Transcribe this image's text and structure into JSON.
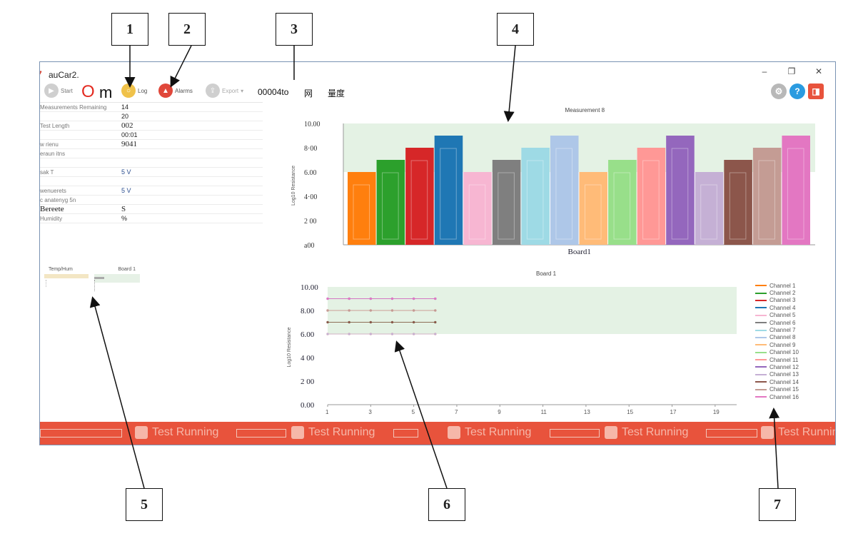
{
  "callouts": [
    "1",
    "2",
    "3",
    "4",
    "5",
    "6",
    "7"
  ],
  "window": {
    "title": "auCar2.",
    "controls": {
      "minimize": "–",
      "restore": "❐",
      "close": "✕"
    }
  },
  "toolbar": {
    "start_label": "Start",
    "om_o": "O",
    "om_m": "m",
    "log_label": "Log",
    "alarms_label": "Alarms",
    "export_label": "Export",
    "counter": "00004to",
    "cn_1": "网",
    "cn_2": "量度",
    "right_icons": [
      "settings-icon",
      "help-icon",
      "app-logo-icon"
    ]
  },
  "info": [
    {
      "label": "Measurements Remaining",
      "value": "14"
    },
    {
      "label": "",
      "value": "20"
    },
    {
      "label": "Test Length",
      "value": "002",
      "big": true
    },
    {
      "label": "",
      "value": "00:01"
    },
    {
      "label": "w        rienu",
      "value": "9041",
      "big": true
    },
    {
      "label": "eraun         itns",
      "value": ""
    },
    {
      "label": "",
      "value": ""
    },
    {
      "label": "sak   T",
      "value": "5 V"
    },
    {
      "label": "",
      "value": ""
    },
    {
      "label": "wenuerets",
      "value": "5 V"
    },
    {
      "label": "c  anatenyg        5n",
      "value": ""
    },
    {
      "label": "Bereete",
      "value": "S",
      "big": true
    },
    {
      "label": "Humidity",
      "value": "%"
    }
  ],
  "temphum": {
    "col1": "Temp/Hum",
    "col2": "Board 1"
  },
  "chart_data": [
    {
      "type": "bar",
      "title": "Measurement 8",
      "xlabel": "Board1",
      "ylabel": "Log10 Resistance",
      "categories": [
        "Channel 1",
        "Channel 2",
        "Channel 3",
        "Channel 4",
        "Channel 5",
        "Channel 6",
        "Channel 7",
        "Channel 8",
        "Channel 9",
        "Channel 10",
        "Channel 11",
        "Channel 12",
        "Channel 13",
        "Channel 14",
        "Channel 15",
        "Channel 16"
      ],
      "values": [
        6.0,
        7.0,
        8.0,
        9.0,
        6.0,
        7.0,
        8.0,
        9.0,
        6.0,
        7.0,
        8.0,
        9.0,
        6.0,
        7.0,
        8.0,
        9.0
      ],
      "ylim": [
        0,
        10
      ],
      "yticks": [
        "a00",
        "2 00",
        "4·00",
        "6.00",
        "8·00",
        "10.00"
      ],
      "band": [
        6,
        10
      ],
      "colors": [
        "#ff7f0e",
        "#2ca02c",
        "#d62728",
        "#1f77b4",
        "#f7b6d2",
        "#7f7f7f",
        "#9edae5",
        "#aec7e8",
        "#ffbb78",
        "#98df8a",
        "#ff9896",
        "#9467bd",
        "#c5b0d5",
        "#8c564b",
        "#c49c94",
        "#e377c2"
      ]
    },
    {
      "type": "line",
      "title": "Board 1",
      "ylabel": "Log10 Resistance",
      "xticks": [
        "1",
        "3",
        "5",
        "7",
        "9",
        "11",
        "13",
        "15",
        "17",
        "19"
      ],
      "yticks": [
        "0.00",
        "2 00",
        "4 00",
        "6.00",
        "8.00",
        "10.00"
      ],
      "ylim": [
        0,
        10
      ],
      "xlim": [
        1,
        20
      ],
      "band": [
        6,
        10
      ],
      "x": [
        1,
        2,
        3,
        4,
        5,
        6
      ],
      "series": [
        {
          "name": "Channel 1",
          "values": [
            6,
            6,
            6,
            6,
            6,
            6
          ]
        },
        {
          "name": "Channel 2",
          "values": [
            7,
            7,
            7,
            7,
            7,
            7
          ]
        },
        {
          "name": "Channel 3",
          "values": [
            8,
            8,
            8,
            8,
            8,
            8
          ]
        },
        {
          "name": "Channel 4",
          "values": [
            9,
            9,
            9,
            9,
            9,
            9
          ]
        },
        {
          "name": "Channel 5",
          "values": [
            6,
            6,
            6,
            6,
            6,
            6
          ]
        },
        {
          "name": "Channel 6",
          "values": [
            7,
            7,
            7,
            7,
            7,
            7
          ]
        },
        {
          "name": "Channel 7",
          "values": [
            8,
            8,
            8,
            8,
            8,
            8
          ]
        },
        {
          "name": "Channel 8",
          "values": [
            9,
            9,
            9,
            9,
            9,
            9
          ]
        },
        {
          "name": "Channel 9",
          "values": [
            6,
            6,
            6,
            6,
            6,
            6
          ]
        },
        {
          "name": "Channel 10",
          "values": [
            7,
            7,
            7,
            7,
            7,
            7
          ]
        },
        {
          "name": "Channel 11",
          "values": [
            8,
            8,
            8,
            8,
            8,
            8
          ]
        },
        {
          "name": "Channel 12",
          "values": [
            9,
            9,
            9,
            9,
            9,
            9
          ]
        },
        {
          "name": "Channel 13",
          "values": [
            6,
            6,
            6,
            6,
            6,
            6
          ]
        },
        {
          "name": "Channel 14",
          "values": [
            7,
            7,
            7,
            7,
            7,
            7
          ]
        },
        {
          "name": "Channel 15",
          "values": [
            8,
            8,
            8,
            8,
            8,
            8
          ]
        },
        {
          "name": "Channel 16",
          "values": [
            9,
            9,
            9,
            9,
            9,
            9
          ]
        }
      ],
      "legend_position": "right"
    }
  ],
  "status": {
    "label": "Test Running",
    "color": "#e8533c"
  }
}
